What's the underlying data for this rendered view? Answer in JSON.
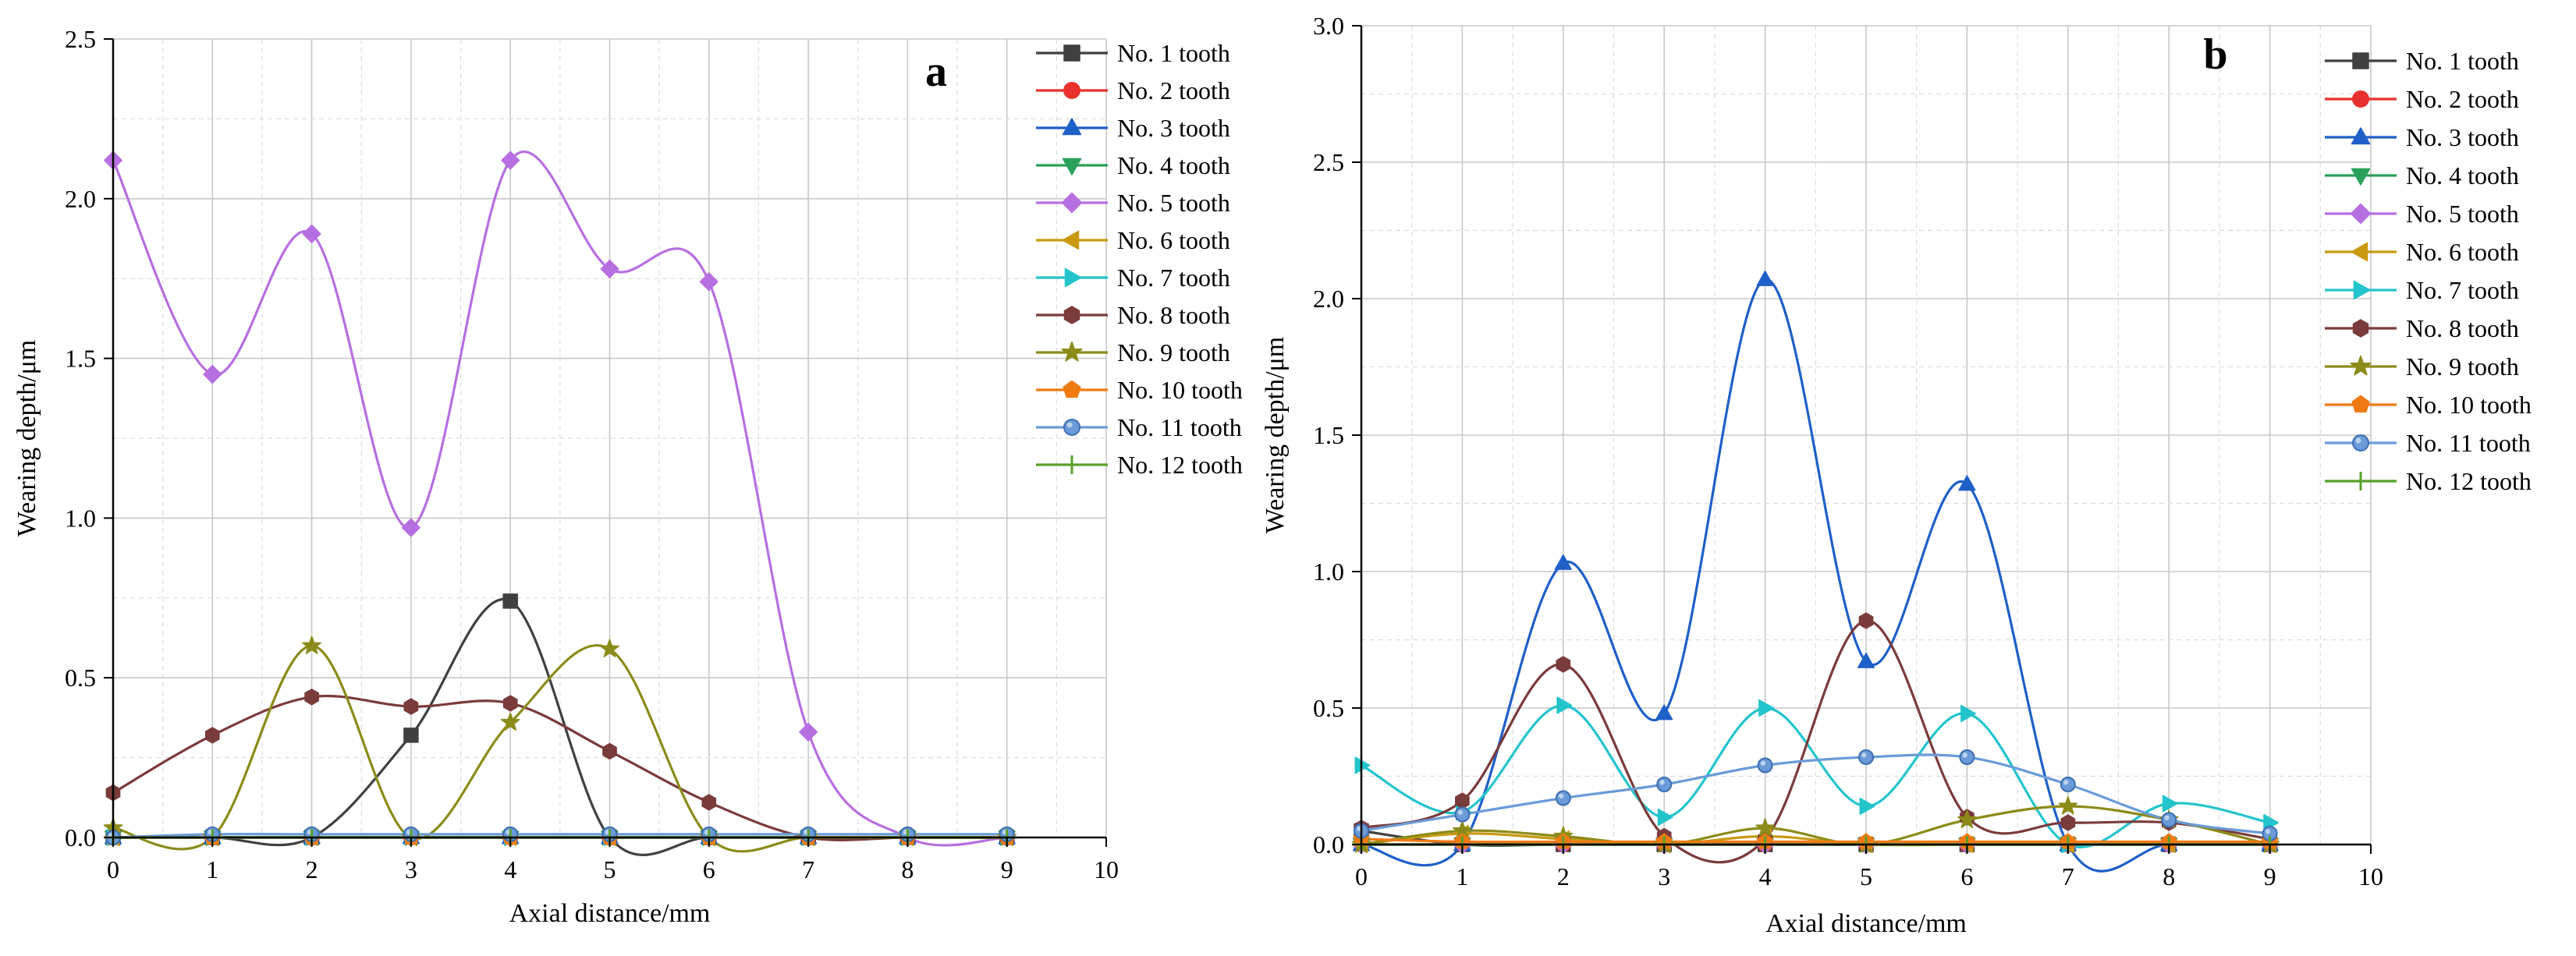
{
  "chart_data": [
    {
      "type": "line",
      "panel_label": "a",
      "xlabel": "Axial distance/mm",
      "ylabel": "Wearing depth/μm",
      "xlim": [
        0,
        10
      ],
      "ylim": [
        0,
        2.5
      ],
      "xticks": [
        0,
        1,
        2,
        3,
        4,
        5,
        6,
        7,
        8,
        9,
        10
      ],
      "yticks": [
        0.0,
        0.5,
        1.0,
        1.5,
        2.0,
        2.5
      ],
      "grid": true,
      "legend_position": "right",
      "x": [
        0,
        1,
        2,
        3,
        4,
        5,
        6,
        7,
        8,
        9
      ],
      "series": [
        {
          "name": "No. 1 tooth",
          "color": "#404040",
          "marker": "square",
          "values": [
            0,
            0,
            0,
            0.32,
            0.74,
            0,
            0,
            0,
            0,
            0
          ]
        },
        {
          "name": "No. 2 tooth",
          "color": "#e8302e",
          "marker": "circle",
          "values": [
            0,
            0,
            0,
            0,
            0,
            0,
            0,
            0,
            0,
            0
          ]
        },
        {
          "name": "No. 3 tooth",
          "color": "#1f5fc8",
          "marker": "triangle-up",
          "values": [
            0,
            0,
            0,
            0,
            0,
            0,
            0,
            0,
            0,
            0
          ]
        },
        {
          "name": "No. 4 tooth",
          "color": "#2ba05a",
          "marker": "triangle-down",
          "values": [
            0,
            0,
            0,
            0,
            0,
            0,
            0,
            0,
            0,
            0
          ]
        },
        {
          "name": "No. 5 tooth",
          "color": "#b66fe0",
          "marker": "diamond",
          "values": [
            2.12,
            1.45,
            1.89,
            0.97,
            2.12,
            1.78,
            1.74,
            0.33,
            0,
            0
          ]
        },
        {
          "name": "No. 6 tooth",
          "color": "#c89a12",
          "marker": "triangle-left",
          "values": [
            0,
            0,
            0,
            0,
            0,
            0,
            0,
            0,
            0,
            0
          ]
        },
        {
          "name": "No. 7 tooth",
          "color": "#23c4cc",
          "marker": "triangle-right",
          "values": [
            0,
            0,
            0,
            0,
            0,
            0,
            0,
            0,
            0,
            0
          ]
        },
        {
          "name": "No. 8 tooth",
          "color": "#7a3b3b",
          "marker": "hexagon",
          "values": [
            0.14,
            0.32,
            0.44,
            0.41,
            0.42,
            0.27,
            0.11,
            0,
            0,
            0
          ]
        },
        {
          "name": "No. 9 tooth",
          "color": "#8b8b1a",
          "marker": "star",
          "values": [
            0.03,
            0,
            0.6,
            0,
            0.36,
            0.59,
            0,
            0,
            0,
            0
          ]
        },
        {
          "name": "No. 10 tooth",
          "color": "#f07a12",
          "marker": "pentagon",
          "values": [
            0,
            0,
            0,
            0,
            0,
            0,
            0,
            0,
            0,
            0
          ]
        },
        {
          "name": "No. 11 tooth",
          "color": "#6a9bd8",
          "marker": "circle-light",
          "values": [
            0,
            0.01,
            0.01,
            0.01,
            0.01,
            0.01,
            0.01,
            0.01,
            0.01,
            0.01
          ]
        },
        {
          "name": "No. 12 tooth",
          "color": "#5aa02c",
          "marker": "plus",
          "values": [
            0,
            0,
            0,
            0,
            0,
            0,
            0,
            0,
            0,
            0
          ]
        }
      ]
    },
    {
      "type": "line",
      "panel_label": "b",
      "xlabel": "Axial distance/mm",
      "ylabel": "Wearing depth/μm",
      "xlim": [
        0,
        10
      ],
      "ylim": [
        0,
        3.0
      ],
      "xticks": [
        0,
        1,
        2,
        3,
        4,
        5,
        6,
        7,
        8,
        9,
        10
      ],
      "yticks": [
        0.0,
        0.5,
        1.0,
        1.5,
        2.0,
        2.5,
        3.0
      ],
      "grid": true,
      "legend_position": "right",
      "x": [
        0,
        1,
        2,
        3,
        4,
        5,
        6,
        7,
        8,
        9
      ],
      "series": [
        {
          "name": "No. 1 tooth",
          "color": "#404040",
          "marker": "square",
          "values": [
            0.05,
            0,
            0,
            0,
            0,
            0,
            0,
            0,
            0,
            0
          ]
        },
        {
          "name": "No. 2 tooth",
          "color": "#e8302e",
          "marker": "circle",
          "values": [
            0,
            0,
            0,
            0,
            0,
            0,
            0,
            0,
            0,
            0
          ]
        },
        {
          "name": "No. 3 tooth",
          "color": "#1f5fc8",
          "marker": "triangle-up",
          "values": [
            0,
            0,
            1.03,
            0.48,
            2.07,
            0.67,
            1.32,
            0,
            0,
            0
          ]
        },
        {
          "name": "No. 4 tooth",
          "color": "#2ba05a",
          "marker": "triangle-down",
          "values": [
            0,
            0,
            0,
            0,
            0,
            0,
            0,
            0,
            0,
            0
          ]
        },
        {
          "name": "No. 5 tooth",
          "color": "#b66fe0",
          "marker": "diamond",
          "values": [
            0,
            0,
            0,
            0,
            0,
            0,
            0,
            0,
            0,
            0
          ]
        },
        {
          "name": "No. 6 tooth",
          "color": "#c89a12",
          "marker": "triangle-left",
          "values": [
            0,
            0.04,
            0.02,
            0,
            0.03,
            0,
            0,
            0,
            0,
            0
          ]
        },
        {
          "name": "No. 7 tooth",
          "color": "#23c4cc",
          "marker": "triangle-right",
          "values": [
            0.29,
            0.12,
            0.51,
            0.1,
            0.5,
            0.14,
            0.48,
            0,
            0.15,
            0.08
          ]
        },
        {
          "name": "No. 8 tooth",
          "color": "#7a3b3b",
          "marker": "hexagon",
          "values": [
            0.06,
            0.16,
            0.66,
            0.03,
            0.02,
            0.82,
            0.1,
            0.08,
            0.08,
            0.02
          ]
        },
        {
          "name": "No. 9 tooth",
          "color": "#8b8b1a",
          "marker": "star",
          "values": [
            0,
            0.05,
            0.03,
            0,
            0.06,
            0,
            0.09,
            0.14,
            0.09,
            0
          ]
        },
        {
          "name": "No. 10 tooth",
          "color": "#f07a12",
          "marker": "pentagon",
          "values": [
            0.02,
            0.01,
            0.01,
            0.01,
            0.01,
            0.01,
            0.01,
            0.01,
            0.01,
            0.01
          ]
        },
        {
          "name": "No. 11 tooth",
          "color": "#6a9bd8",
          "marker": "circle-light",
          "values": [
            0.05,
            0.11,
            0.17,
            0.22,
            0.29,
            0.32,
            0.32,
            0.22,
            0.09,
            0.04
          ]
        },
        {
          "name": "No. 12 tooth",
          "color": "#5aa02c",
          "marker": "plus",
          "values": [
            0,
            0,
            0,
            0,
            0,
            0,
            0,
            0,
            0,
            0
          ]
        }
      ]
    }
  ]
}
